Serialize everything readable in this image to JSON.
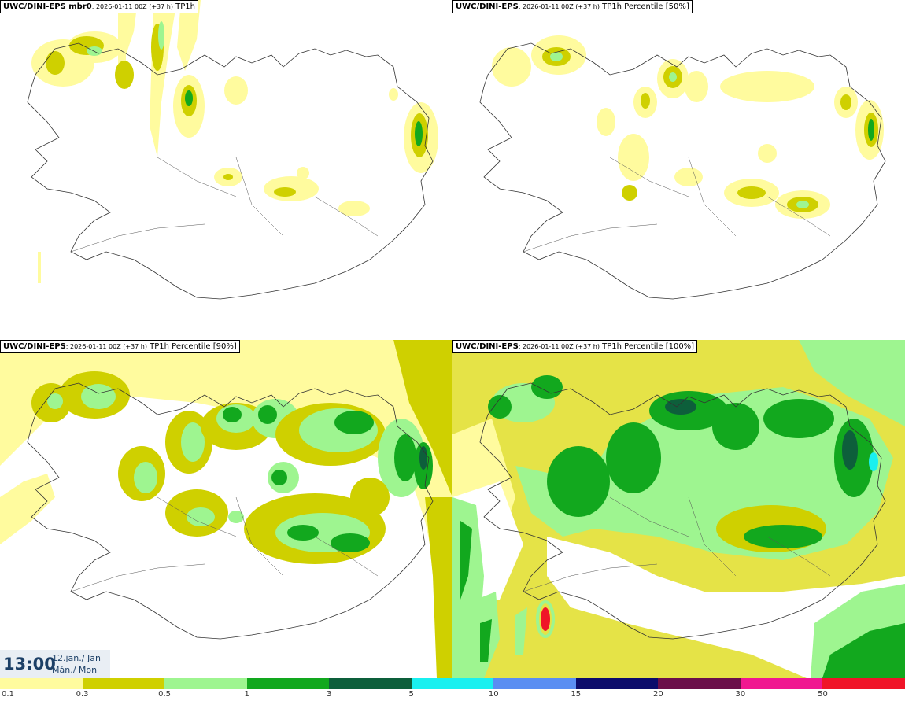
{
  "panels": [
    {
      "model": "UWC/DINI-EPS",
      "rest": " mbr0",
      "run": ": 2026-01-11 00Z (+37 h)",
      "field": " TP1h"
    },
    {
      "model": "UWC/DINI-EPS",
      "rest": "",
      "run": ": 2026-01-11 00Z (+37 h)",
      "field": " TP1h Percentile [50%]"
    },
    {
      "model": "UWC/DINI-EPS",
      "rest": "",
      "run": ": 2026-01-11 00Z (+37 h)",
      "field": " TP1h Percentile [90%]"
    },
    {
      "model": "UWC/DINI-EPS",
      "rest": "",
      "run": ": 2026-01-11 00Z (+37 h)",
      "field": " TP1h Percentile [100%]"
    }
  ],
  "time": {
    "hour": "13:00",
    "date": "12.jan./ Jan",
    "weekday": "Mán./ Mon"
  },
  "colorbar": {
    "colors": [
      "#fffb9e",
      "#cfd000",
      "#9ef590",
      "#12a81e",
      "#0d5f3b",
      "#19f0f0",
      "#5a8ef2",
      "#0c0c6b",
      "#6b0f4a",
      "#f01890",
      "#f01428"
    ],
    "labels": [
      "0.1",
      "0.3",
      "0.5",
      "1",
      "3",
      "5",
      "10",
      "15",
      "20",
      "30",
      "50"
    ]
  },
  "colors": {
    "light_yellow": "#fffb9e",
    "olive": "#cfd000",
    "light_green": "#9ef590",
    "green": "#12a81e",
    "dark_green": "#0d5f3b",
    "cyan": "#19f0f0",
    "coast": "#333333"
  }
}
